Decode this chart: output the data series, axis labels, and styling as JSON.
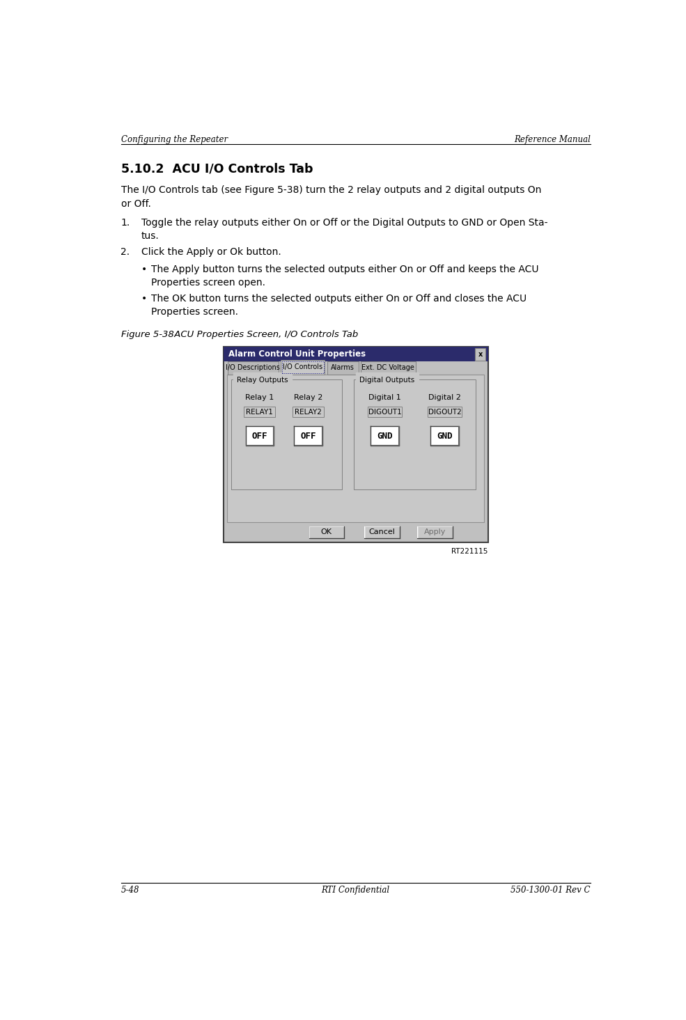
{
  "page_width": 9.85,
  "page_height": 14.65,
  "bg_color": "#ffffff",
  "header_left": "Configuring the Repeater",
  "header_right": "Reference Manual",
  "footer_left": "5-48",
  "footer_center": "RTI Confidential",
  "footer_right": "550-1300-01 Rev C",
  "section_title": "5.10.2  ACU I/O Controls Tab",
  "figure_label": "Figure 5-38",
  "figure_caption": "ACU Properties Screen, I/O Controls Tab",
  "figure_id": "RT221115",
  "dialog_title": "Alarm Control Unit Properties",
  "tabs": [
    "I/O Descriptions",
    "I/O Controls",
    "Alarms",
    "Ext. DC Voltage"
  ],
  "active_tab": 1,
  "relay_group_label": "Relay Outputs",
  "digital_group_label": "Digital Outputs",
  "relay_labels": [
    "Relay 1",
    "Relay 2"
  ],
  "relay_ids": [
    "RELAY1",
    "RELAY2"
  ],
  "relay_states": [
    "OFF",
    "OFF"
  ],
  "digital_labels": [
    "Digital 1",
    "Digital 2"
  ],
  "digital_ids": [
    "DIGOUT1",
    "DIGOUT2"
  ],
  "digital_states": [
    "GND",
    "GND"
  ],
  "dialog_buttons": [
    "OK",
    "Cancel",
    "Apply"
  ],
  "title_bar_color": "#2b2b6b",
  "dialog_bg": "#c0c0c0",
  "content_bg": "#c8c8c8",
  "tab_active_bg": "#c8c8c8",
  "tab_inactive_bg": "#b8b8b8"
}
